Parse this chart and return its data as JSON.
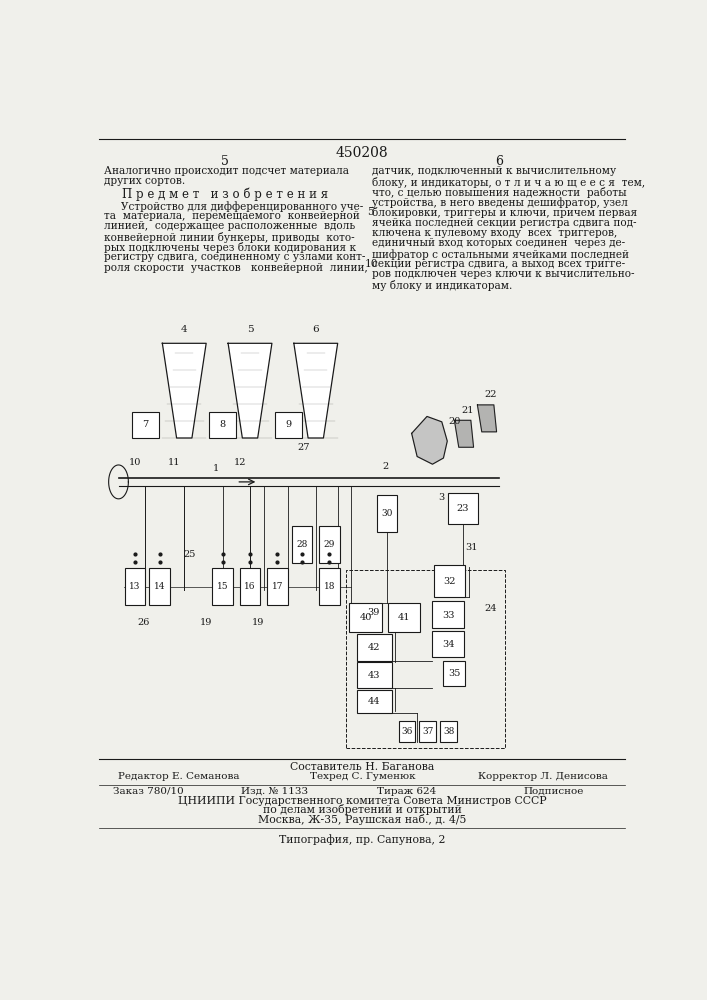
{
  "patent_number": "450208",
  "bg_color": "#f0f0eb",
  "text_color": "#1a1a1a",
  "bottom_composer": "Составитель Н. Баганова",
  "bottom_editor": "Редактор Е. Семанова",
  "bottom_tech": "Техред С. Гуменюк",
  "bottom_corrector": "Корректор Л. Денисова",
  "bottom_order": "Заказ 780/10",
  "bottom_izd": "Изд. № 1133",
  "bottom_tirazh": "Тираж 624",
  "bottom_podpisnoe": "Подписное",
  "bottom_org": "ЦНИИПИ Государственного комитета Совета Министров СССР",
  "bottom_dela": "по делам изобретений и открытий",
  "bottom_address": "Москва, Ж-35, Раушская наб., д. 4/5",
  "bottom_typography": "Типография, пр. Сапунова, 2"
}
